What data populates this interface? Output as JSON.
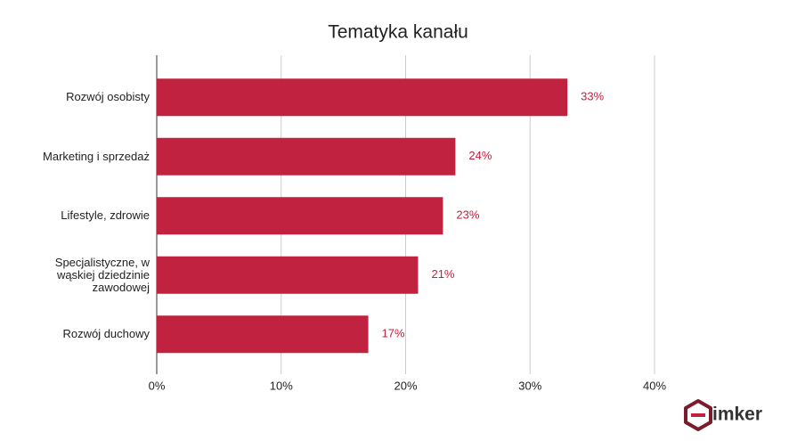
{
  "chart_data": {
    "type": "bar",
    "orientation": "horizontal",
    "title": "Tematyka kanału",
    "categories": [
      "Rozwój osobisty",
      "Marketing i sprzedaż",
      "Lifestyle, zdrowie",
      "Specjalistyczne, w wąskiej dziedzinie zawodowej",
      "Rozwój duchowy"
    ],
    "values": [
      33,
      24,
      23,
      21,
      17
    ],
    "value_labels": [
      "33%",
      "24%",
      "23%",
      "21%",
      "17%"
    ],
    "color": "#c0223f",
    "xlim": [
      0,
      40
    ],
    "xticks": [
      {
        "value": 0,
        "label": "0%"
      },
      {
        "value": 10,
        "label": "10%"
      },
      {
        "value": 20,
        "label": "20%"
      },
      {
        "value": 30,
        "label": "30%"
      },
      {
        "value": 40,
        "label": "40%"
      }
    ],
    "grid": true
  },
  "logo_text": "imker"
}
